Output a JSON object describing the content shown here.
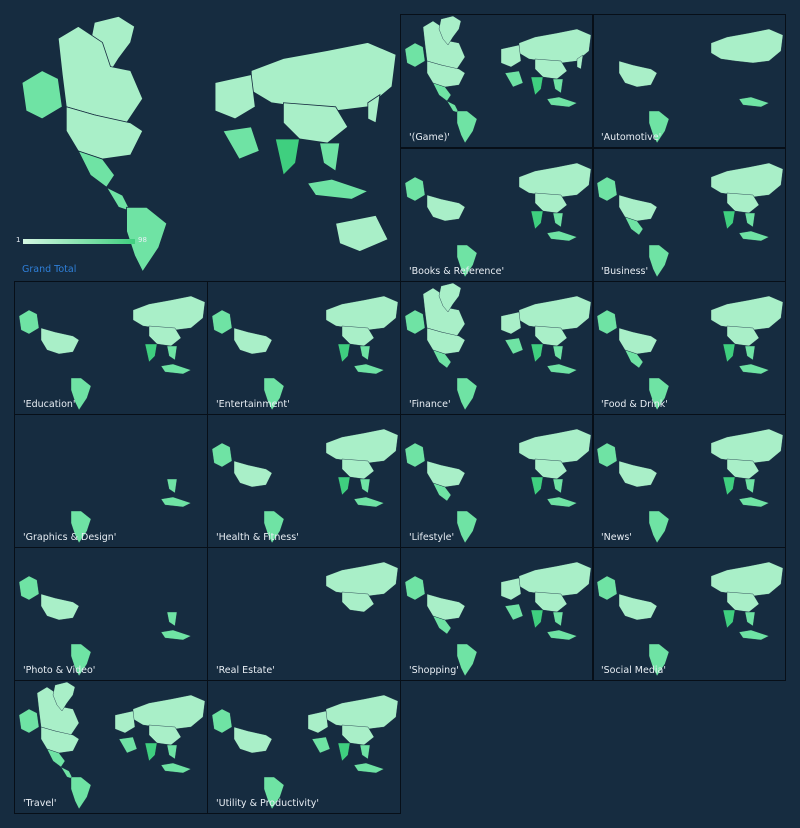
{
  "grand_total_label": "Grand Total",
  "legend": {
    "min": "1",
    "max": "98"
  },
  "colors": {
    "background": "#162c40",
    "land_light": "#a9efc8",
    "land_mid": "#6fe3a4",
    "land_dark": "#3fcf7f",
    "border": "#070f18"
  },
  "panels": [
    {
      "id": "game",
      "label": "'(Game)'",
      "regions": [
        "canada",
        "alaska",
        "greenland",
        "usa",
        "mexico",
        "centam",
        "southam",
        "russia",
        "europe",
        "middleeast",
        "china",
        "india",
        "seasia",
        "indonesia",
        "japan"
      ]
    },
    {
      "id": "automotive",
      "label": "'Automotive'",
      "regions": [
        "usa",
        "southam",
        "russia",
        "indonesia"
      ]
    },
    {
      "id": "books",
      "label": "'Books & Reference'",
      "regions": [
        "alaska",
        "usa",
        "southam",
        "russia",
        "china",
        "india",
        "seasia",
        "indonesia"
      ]
    },
    {
      "id": "business",
      "label": "'Business'",
      "regions": [
        "alaska",
        "usa",
        "mexico",
        "southam",
        "russia",
        "china",
        "india",
        "seasia",
        "indonesia"
      ]
    },
    {
      "id": "education",
      "label": "'Education'",
      "regions": [
        "alaska",
        "usa",
        "southam",
        "russia",
        "china",
        "india",
        "seasia",
        "indonesia"
      ]
    },
    {
      "id": "entertainment",
      "label": "'Entertainment'",
      "regions": [
        "alaska",
        "usa",
        "southam",
        "russia",
        "china",
        "india",
        "seasia",
        "indonesia"
      ]
    },
    {
      "id": "finance",
      "label": "'Finance'",
      "regions": [
        "canada",
        "alaska",
        "greenland",
        "usa",
        "mexico",
        "southam",
        "russia",
        "europe",
        "middleeast",
        "china",
        "india",
        "seasia",
        "indonesia"
      ]
    },
    {
      "id": "food",
      "label": "'Food & Drink'",
      "regions": [
        "alaska",
        "usa",
        "mexico",
        "southam",
        "russia",
        "china",
        "india",
        "seasia",
        "indonesia"
      ]
    },
    {
      "id": "graphics",
      "label": "'Graphics & Design'",
      "regions": [
        "southam",
        "seasia",
        "indonesia"
      ]
    },
    {
      "id": "health",
      "label": "'Health & Fitness'",
      "regions": [
        "alaska",
        "usa",
        "southam",
        "russia",
        "china",
        "india",
        "seasia",
        "indonesia"
      ]
    },
    {
      "id": "lifestyle",
      "label": "'Lifestyle'",
      "regions": [
        "alaska",
        "usa",
        "mexico",
        "southam",
        "russia",
        "china",
        "india",
        "seasia",
        "indonesia"
      ]
    },
    {
      "id": "news",
      "label": "'News'",
      "regions": [
        "alaska",
        "usa",
        "southam",
        "russia",
        "china",
        "india",
        "seasia",
        "indonesia"
      ]
    },
    {
      "id": "photo",
      "label": "'Photo & Video'",
      "regions": [
        "alaska",
        "usa",
        "southam",
        "seasia",
        "indonesia"
      ]
    },
    {
      "id": "realestate",
      "label": "'Real Estate'",
      "regions": [
        "russia",
        "china"
      ]
    },
    {
      "id": "shopping",
      "label": "'Shopping'",
      "regions": [
        "alaska",
        "usa",
        "mexico",
        "southam",
        "russia",
        "europe",
        "middleeast",
        "china",
        "india",
        "seasia",
        "indonesia"
      ]
    },
    {
      "id": "social",
      "label": "'Social Media'",
      "regions": [
        "alaska",
        "usa",
        "southam",
        "russia",
        "china",
        "india",
        "seasia",
        "indonesia"
      ]
    },
    {
      "id": "travel",
      "label": "'Travel'",
      "regions": [
        "canada",
        "alaska",
        "greenland",
        "usa",
        "mexico",
        "centam",
        "southam",
        "russia",
        "europe",
        "middleeast",
        "china",
        "india",
        "seasia",
        "indonesia"
      ]
    },
    {
      "id": "utility",
      "label": "'Utility & Productivity'",
      "regions": [
        "alaska",
        "usa",
        "southam",
        "russia",
        "europe",
        "middleeast",
        "china",
        "india",
        "seasia",
        "indonesia"
      ]
    }
  ]
}
